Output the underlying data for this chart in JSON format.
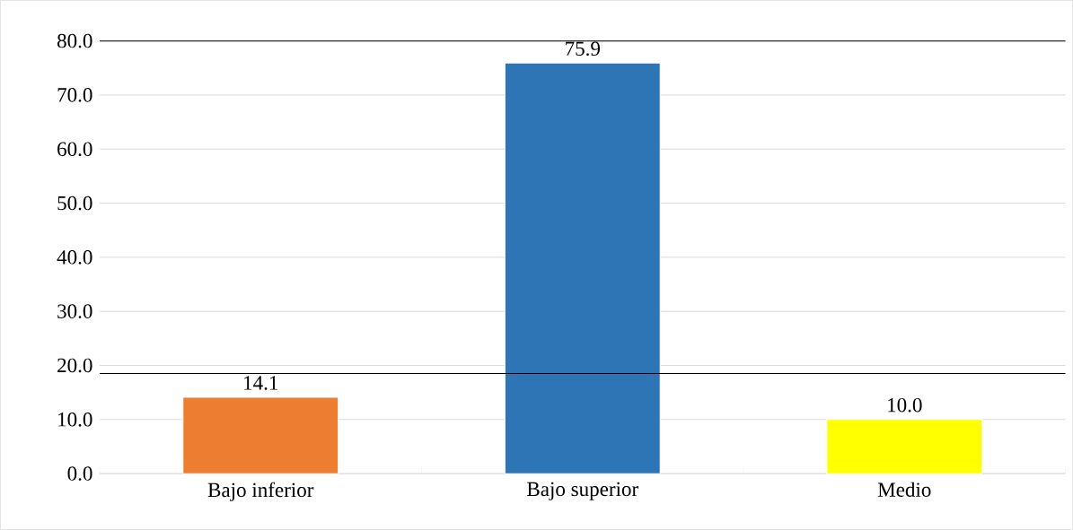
{
  "chart_data": {
    "type": "bar",
    "categories": [
      "Bajo inferior",
      "Bajo superior",
      "Medio"
    ],
    "values": [
      14.1,
      75.9,
      10.0
    ],
    "colors": [
      "#ed7d31",
      "#2e75b6",
      "#ffff00"
    ],
    "value_labels": [
      "14.1",
      "75.9",
      "10.0"
    ],
    "ylim": [
      0,
      80
    ],
    "yticks": [
      {
        "value": 0,
        "label": "0.0"
      },
      {
        "value": 10,
        "label": "10.0"
      },
      {
        "value": 20,
        "label": "20.0"
      },
      {
        "value": 30,
        "label": "30.0"
      },
      {
        "value": 40,
        "label": "40.0"
      },
      {
        "value": 50,
        "label": "50.0"
      },
      {
        "value": 60,
        "label": "60.0"
      },
      {
        "value": 70,
        "label": "70.0"
      },
      {
        "value": 80,
        "label": "80.0"
      }
    ],
    "grid": "y",
    "ref_lines": [
      {
        "axis": "y",
        "value": 80,
        "color": "#000000"
      },
      {
        "axis": "y",
        "value": 18.5,
        "color": "#000000"
      }
    ]
  }
}
